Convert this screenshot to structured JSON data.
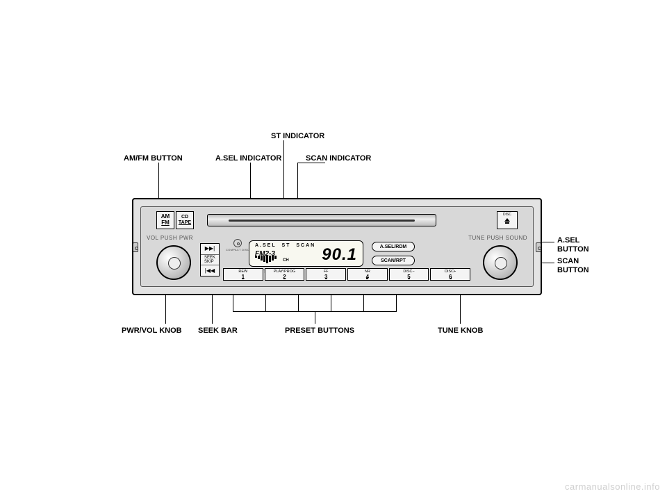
{
  "labels": {
    "st_indicator": "ST INDICATOR",
    "amfm_button": "AM/FM BUTTON",
    "asel_indicator": "A.SEL INDICATOR",
    "scan_indicator": "SCAN INDICATOR",
    "asel_button_l1": "A.SEL",
    "asel_button_l2": "BUTTON",
    "scan_button_l1": "SCAN",
    "scan_button_l2": "BUTTON",
    "pwr_vol_knob": "PWR/VOL KNOB",
    "seek_bar": "SEEK BAR",
    "preset_buttons": "PRESET BUTTONS",
    "tune_knob": "TUNE KNOB"
  },
  "unit": {
    "amfm_top": "AM",
    "amfm_bot": "FM",
    "cdtape_top": "CD",
    "cdtape_bot": "TAPE",
    "disc_txt": "DISC",
    "vol": "VOL PUSH PWR",
    "tune": "TUNE PUSH SOUND",
    "seek_top": "▶▶|",
    "seek_mid1": "SEEK",
    "seek_mid2": "SKIP",
    "seek_bot": "|◀◀",
    "cd_logo": "COMPACT DISC",
    "anti": "ANTI   THEFT",
    "asel_pill": "A.SEL/RDM",
    "scan_pill": "SCAN/RPT",
    "card": "2TC4",
    "clock": "CLOCK"
  },
  "lcd": {
    "ind_asel": "A.SEL",
    "ind_st": "ST",
    "ind_scan": "SCAN",
    "band": "FM2-3",
    "ch": "CH",
    "freq": "90.1",
    "bars": [
      3,
      5,
      7,
      9,
      11,
      9,
      7,
      5
    ]
  },
  "presets": [
    {
      "top": "REW",
      "num": "1"
    },
    {
      "top": "PLAY/PROG",
      "num": "2"
    },
    {
      "top": "FF",
      "num": "3"
    },
    {
      "top": "NR",
      "num": "4"
    },
    {
      "top": "DISC−",
      "num": "5"
    },
    {
      "top": "DISC+",
      "num": "6"
    }
  ],
  "colors": {
    "bg": "#ffffff",
    "panel": "#e3e3e3",
    "panel_inner": "#d8d8d8",
    "button": "#f4f4f4",
    "lcd": "#f8f8f0",
    "line": "#000000",
    "watermark": "#d0d0d0"
  },
  "watermark": "carmanualsonline.info"
}
